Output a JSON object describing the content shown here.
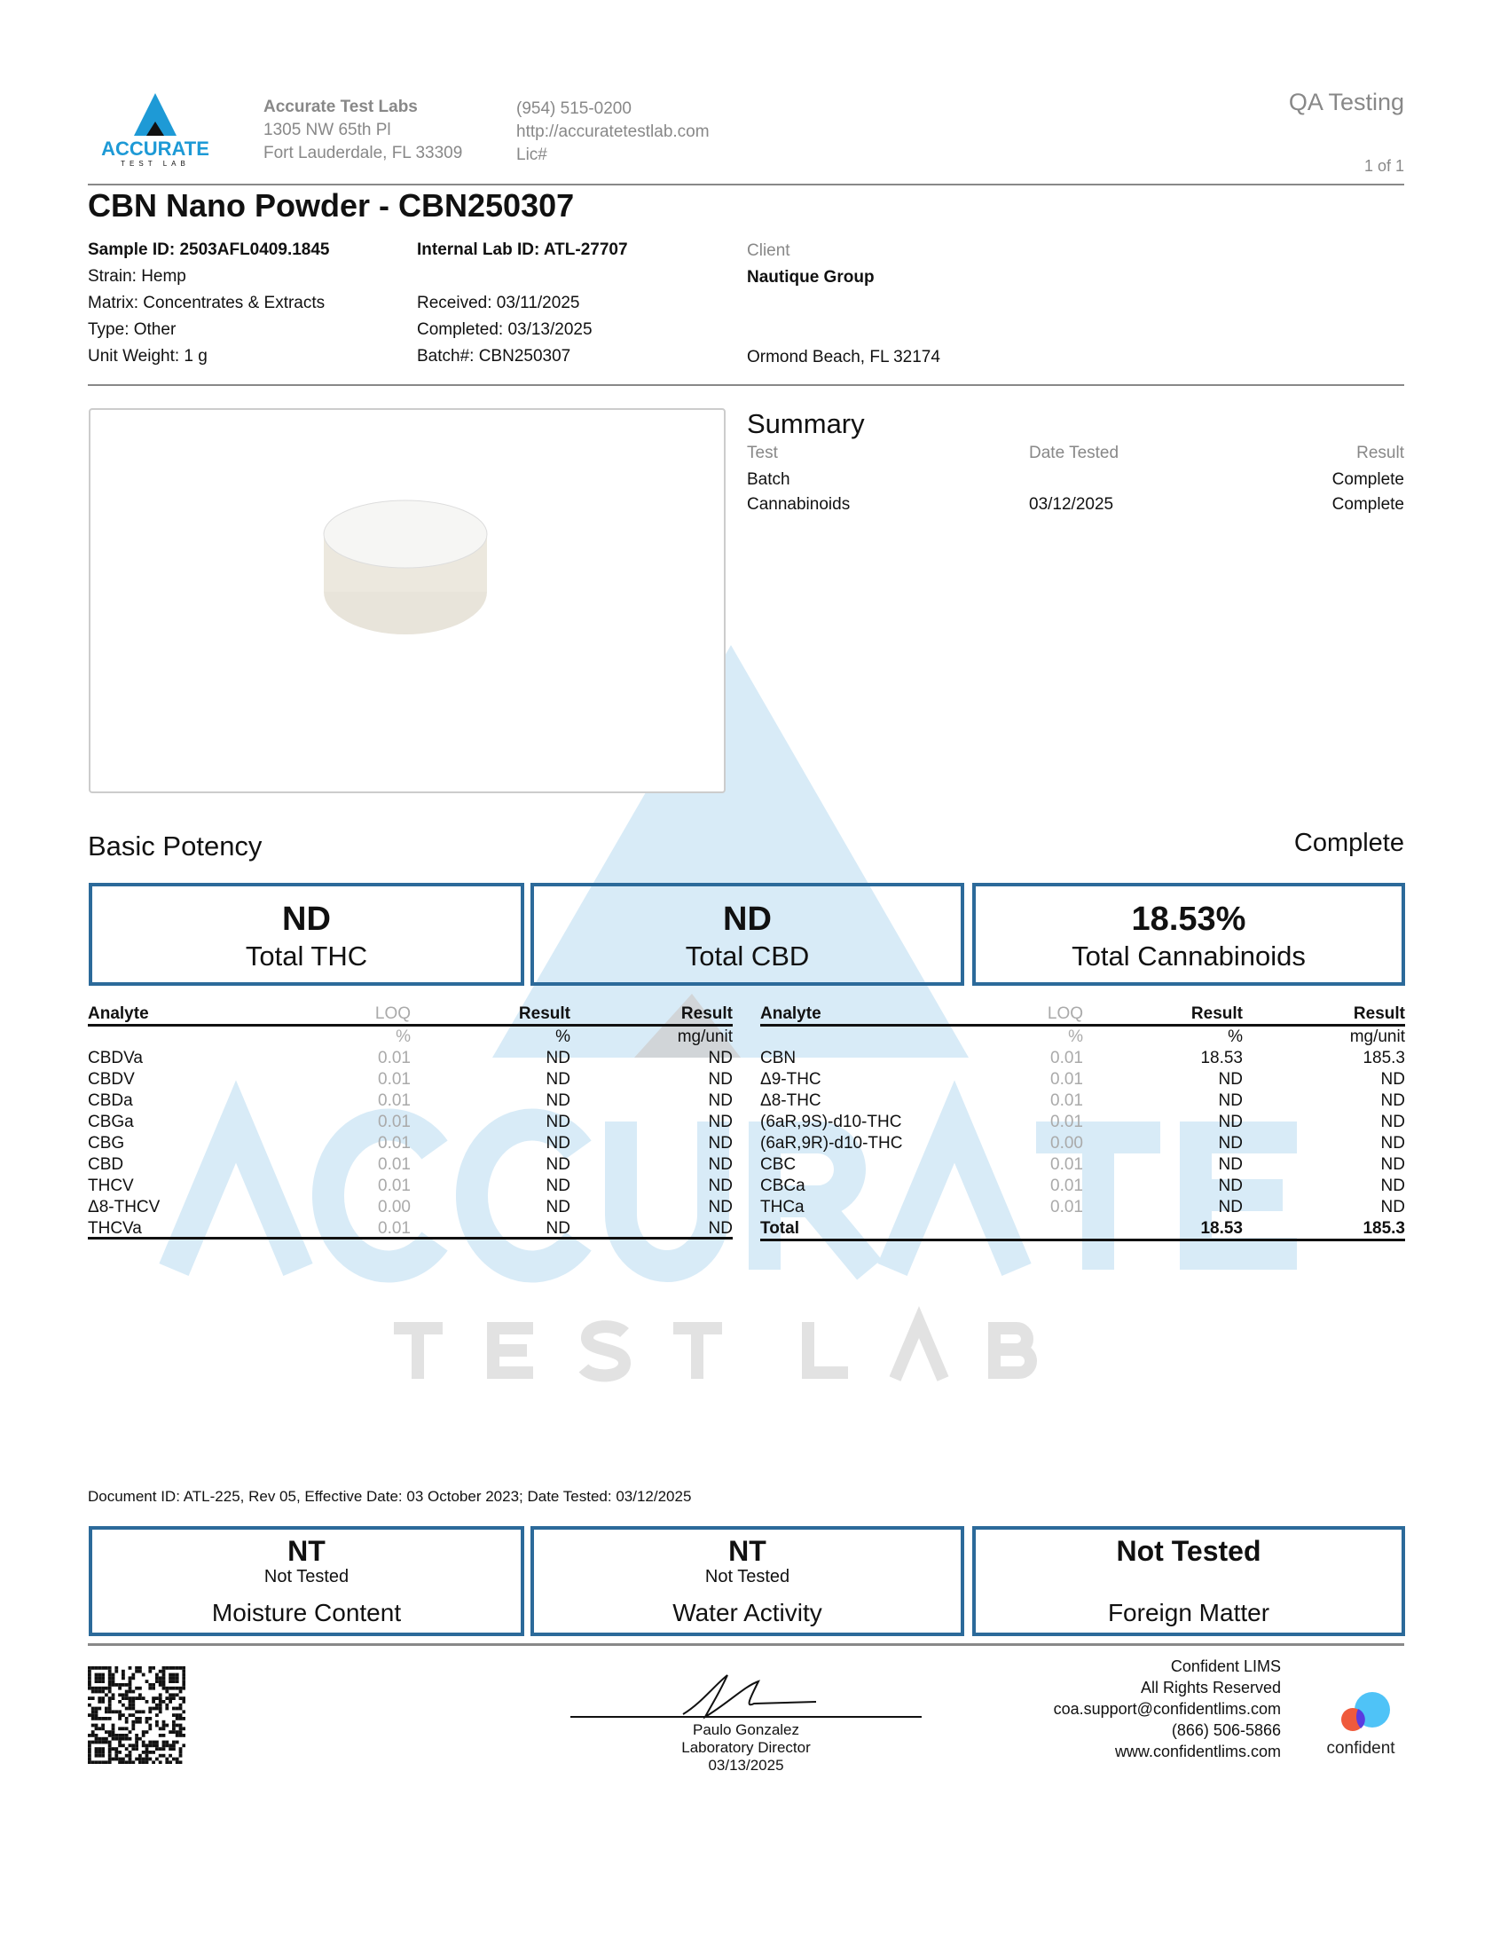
{
  "lab": {
    "name": "Accurate Test Labs",
    "address1": "1305 NW 65th Pl",
    "address2": "Fort Lauderdale, FL 33309",
    "phone": "(954) 515-0200",
    "website": "http://accuratetestlab.com",
    "license": "Lic#",
    "logo_text": "ACCURATE",
    "logo_sub": "TEST LAB"
  },
  "header": {
    "report_type": "QA Testing",
    "page": "1 of 1"
  },
  "title": "CBN Nano Powder - CBN250307",
  "sample": {
    "sample_id": "Sample ID: 2503AFL0409.1845",
    "strain": "Strain: Hemp",
    "matrix": "Matrix: Concentrates & Extracts",
    "type": "Type: Other",
    "unit_weight": "Unit Weight: 1 g",
    "internal_id": "Internal Lab ID: ATL-27707",
    "received": "Received: 03/11/2025",
    "completed": "Completed: 03/13/2025",
    "batch": "Batch#: CBN250307"
  },
  "client": {
    "label": "Client",
    "name": "Nautique Group",
    "location": "Ormond Beach, FL 32174"
  },
  "summary": {
    "title": "Summary",
    "headers": [
      "Test",
      "Date Tested",
      "Result"
    ],
    "rows": [
      {
        "test": "Batch",
        "date": "",
        "result": "Complete"
      },
      {
        "test": "Cannabinoids",
        "date": "03/12/2025",
        "result": "Complete"
      }
    ]
  },
  "potency": {
    "title": "Basic Potency",
    "status": "Complete",
    "boxes": [
      {
        "value": "ND",
        "label": "Total THC"
      },
      {
        "value": "ND",
        "label": "Total CBD"
      },
      {
        "value": "18.53%",
        "label": "Total Cannabinoids"
      }
    ]
  },
  "table_headers": {
    "analyte": "Analyte",
    "loq": "LOQ",
    "result": "Result",
    "result2": "Result",
    "loq_unit": "%",
    "result_unit": "%",
    "result2_unit": "mg/unit"
  },
  "table_left": [
    {
      "analyte": "CBDVa",
      "loq": "0.01",
      "pct": "ND",
      "mg": "ND"
    },
    {
      "analyte": "CBDV",
      "loq": "0.01",
      "pct": "ND",
      "mg": "ND"
    },
    {
      "analyte": "CBDa",
      "loq": "0.01",
      "pct": "ND",
      "mg": "ND"
    },
    {
      "analyte": "CBGa",
      "loq": "0.01",
      "pct": "ND",
      "mg": "ND"
    },
    {
      "analyte": "CBG",
      "loq": "0.01",
      "pct": "ND",
      "mg": "ND"
    },
    {
      "analyte": "CBD",
      "loq": "0.01",
      "pct": "ND",
      "mg": "ND"
    },
    {
      "analyte": "THCV",
      "loq": "0.01",
      "pct": "ND",
      "mg": "ND"
    },
    {
      "analyte": "Δ8-THCV",
      "loq": "0.00",
      "pct": "ND",
      "mg": "ND"
    },
    {
      "analyte": "THCVa",
      "loq": "0.01",
      "pct": "ND",
      "mg": "ND"
    }
  ],
  "table_right": [
    {
      "analyte": "CBN",
      "loq": "0.01",
      "pct": "18.53",
      "mg": "185.3"
    },
    {
      "analyte": "Δ9-THC",
      "loq": "0.01",
      "pct": "ND",
      "mg": "ND"
    },
    {
      "analyte": "Δ8-THC",
      "loq": "0.01",
      "pct": "ND",
      "mg": "ND"
    },
    {
      "analyte": "(6aR,9S)-d10-THC",
      "loq": "0.01",
      "pct": "ND",
      "mg": "ND"
    },
    {
      "analyte": "(6aR,9R)-d10-THC",
      "loq": "0.00",
      "pct": "ND",
      "mg": "ND"
    },
    {
      "analyte": "CBC",
      "loq": "0.01",
      "pct": "ND",
      "mg": "ND"
    },
    {
      "analyte": "CBCa",
      "loq": "0.01",
      "pct": "ND",
      "mg": "ND"
    },
    {
      "analyte": "THCa",
      "loq": "0.01",
      "pct": "ND",
      "mg": "ND"
    }
  ],
  "total": {
    "label": "Total",
    "pct": "18.53",
    "mg": "185.3"
  },
  "watermark": {
    "text": "ACCURATE",
    "sub": "T E S T   L A B"
  },
  "document_id": "Document ID: ATL-225, Rev 05, Effective Date: 03 October 2023; Date Tested: 03/12/2025",
  "other_tests": [
    {
      "value": "NT",
      "sub": "Not Tested",
      "label": "Moisture Content"
    },
    {
      "value": "NT",
      "sub": "Not Tested",
      "label": "Water Activity"
    },
    {
      "value": "Not Tested",
      "sub": "",
      "label": "Foreign Matter"
    }
  ],
  "signature": {
    "name": "Paulo Gonzalez",
    "title": "Laboratory Director",
    "date": "03/13/2025"
  },
  "lims": {
    "line1": "Confident LIMS",
    "line2": "All Rights Reserved",
    "email": "coa.support@confidentlims.com",
    "phone": "(866) 506-5866",
    "website": "www.confidentlims.com",
    "logo_text": "confident"
  },
  "colors": {
    "accent": "#2c6a9a",
    "logo_blue": "#1e9ad6",
    "watermark_blue": "#d8ebf7"
  }
}
